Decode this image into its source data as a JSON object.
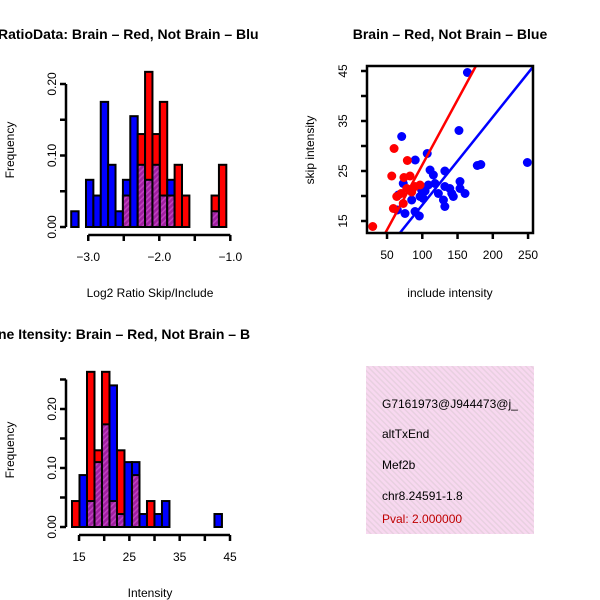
{
  "chart_data": [
    {
      "type": "bar",
      "subtype": "overlapping-histogram",
      "title": "RatioData: Brain – Red, Not Brain – Blu",
      "xlabel": "Log2 Ratio Skip/Include",
      "ylabel": "Frequency",
      "xlim": [
        -3.25,
        -1.0
      ],
      "ylim": [
        0,
        0.2
      ],
      "x_ticks": [
        -3.0,
        -2.5,
        -2.0,
        -1.5,
        -1.0
      ],
      "x_tick_labels": [
        "-3.0",
        "-2.0",
        "-1.0"
      ],
      "y_ticks": [
        0,
        0.05,
        0.1,
        0.15,
        0.2
      ],
      "y_tick_labels": [
        "0.00",
        "0.10",
        "0.20"
      ],
      "breaks_start": -3.24,
      "bin_width": 0.104,
      "series": [
        {
          "name": "Brain",
          "color": "#ff0000",
          "values": [
            0,
            0,
            0,
            0,
            0,
            0,
            0,
            0.044,
            0,
            0.13,
            0.217,
            0.13,
            0.175,
            0.044,
            0.087,
            0.044,
            0,
            0,
            0,
            0.044,
            0.087
          ]
        },
        {
          "name": "Not Brain",
          "color": "#0000ff",
          "values": [
            0.022,
            0,
            0.066,
            0.044,
            0.175,
            0.087,
            0.022,
            0.066,
            0.155,
            0.087,
            0.066,
            0.087,
            0.044,
            0.066,
            0,
            0,
            0,
            0,
            0,
            0.022,
            0
          ]
        }
      ],
      "overlap_color": "#a020a0"
    },
    {
      "type": "scatter",
      "title": "Brain – Red, Not Brain – Blue",
      "xlabel": "include intensity",
      "ylabel": "skip intensity",
      "xlim": [
        21.6,
        257
      ],
      "ylim": [
        12.6,
        46
      ],
      "x_ticks": [
        50,
        100,
        150,
        200,
        250
      ],
      "x_tick_labels": [
        "50",
        "100",
        "150",
        "200",
        "250"
      ],
      "y_ticks": [
        15,
        20,
        25,
        30,
        35,
        40,
        45
      ],
      "y_tick_labels": [
        "15",
        "25",
        "35",
        "45"
      ],
      "series": [
        {
          "name": "Brain",
          "color": "#ff0000",
          "points": [
            [
              29.7,
              13.9
            ],
            [
              60,
              29.5
            ],
            [
              78.8,
              27.1
            ],
            [
              56.7,
              24
            ],
            [
              74,
              23.7
            ],
            [
              82.6,
              24
            ],
            [
              78,
              21.5
            ],
            [
              89.7,
              21.9
            ],
            [
              63.8,
              19.9
            ],
            [
              73,
              18.5
            ],
            [
              59,
              17.5
            ],
            [
              96.8,
              22.2
            ],
            [
              70,
              20.5
            ],
            [
              85,
              20.8
            ]
          ],
          "fit": {
            "intercept": 0.23,
            "slope": 0.26
          }
        },
        {
          "name": "Not Brain",
          "color": "#0000ff",
          "points": [
            [
              164,
              44.7
            ],
            [
              70.8,
              31.9
            ],
            [
              152,
              33.1
            ],
            [
              249,
              26.7
            ],
            [
              178,
              26.1
            ],
            [
              183,
              26.3
            ],
            [
              107,
              28.5
            ],
            [
              90,
              27.2
            ],
            [
              111,
              25.2
            ],
            [
              115.7,
              24.2
            ],
            [
              132,
              25
            ],
            [
              73,
              22.5
            ],
            [
              108.6,
              22.2
            ],
            [
              99,
              21.2
            ],
            [
              132,
              21.9
            ],
            [
              139,
              21.5
            ],
            [
              153.5,
              22.9
            ],
            [
              153.5,
              21.5
            ],
            [
              122.8,
              20.5
            ],
            [
              141.8,
              20.5
            ],
            [
              160.6,
              20.5
            ],
            [
              66,
              20.2
            ],
            [
              96.8,
              19.9
            ],
            [
              85,
              19.2
            ],
            [
              101.5,
              19.5
            ],
            [
              130,
              19.2
            ],
            [
              144,
              19.9
            ],
            [
              132,
              17.9
            ],
            [
              64.6,
              17.2
            ],
            [
              75.5,
              16.5
            ],
            [
              89.7,
              16.9
            ],
            [
              95.8,
              16
            ],
            [
              118,
              22.5
            ],
            [
              104,
              21
            ]
          ],
          "fit": {
            "intercept": 0.6,
            "slope": 0.176
          }
        }
      ]
    },
    {
      "type": "bar",
      "subtype": "overlapping-histogram",
      "title": "ne Itensity: Brain – Red, Not Brain – B",
      "xlabel": "Intensity",
      "ylabel": "Frequency",
      "xlim": [
        13.6,
        45
      ],
      "ylim": [
        0,
        0.25
      ],
      "x_ticks": [
        15,
        20,
        25,
        30,
        35,
        40,
        45
      ],
      "x_tick_labels": [
        "15",
        "25",
        "35",
        "45"
      ],
      "y_ticks": [
        0,
        0.05,
        0.1,
        0.15,
        0.2,
        0.25
      ],
      "y_tick_labels": [
        "0.00",
        "0.10",
        "0.20"
      ],
      "breaks_start": 13.6,
      "bin_width": 1.49,
      "series": [
        {
          "name": "Brain",
          "color": "#ff0000",
          "values": [
            0.044,
            0,
            0.263,
            0.13,
            0.263,
            0.044,
            0.13,
            0,
            0.088,
            0,
            0.044,
            0,
            0,
            0,
            0,
            0,
            0,
            0,
            0,
            0
          ]
        },
        {
          "name": "Not Brain",
          "color": "#0000ff",
          "values": [
            0,
            0.088,
            0.044,
            0.11,
            0.174,
            0.24,
            0.022,
            0.11,
            0.11,
            0.022,
            0,
            0.022,
            0.044,
            0,
            0,
            0,
            0,
            0,
            0,
            0.022
          ]
        }
      ],
      "overlap_color": "#a020a0"
    }
  ],
  "info_box": {
    "id": "G7161973@J944473@j_",
    "event_type": "altTxEnd",
    "gene": "Mef2b",
    "location": "chr8.24591-1.8",
    "pval": "Pval: 2.000000",
    "pval_color": "#c00000",
    "background": "#f8d8f0"
  }
}
